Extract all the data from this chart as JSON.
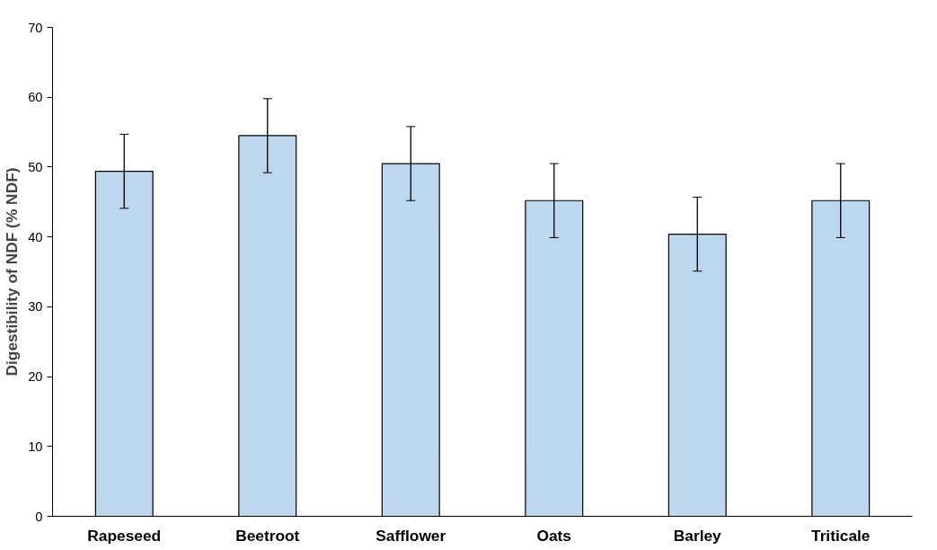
{
  "chart_data": {
    "type": "bar",
    "ylabel": "Digestibility of NDF (% NDF)",
    "categories": [
      "Rapeseed",
      "Beetroot",
      "Safflower",
      "Oats",
      "Barley",
      "Triticale"
    ],
    "values": [
      49.4,
      54.5,
      50.5,
      45.2,
      40.4,
      45.2
    ],
    "errors": [
      5.3,
      5.3,
      5.3,
      5.3,
      5.3,
      5.3
    ],
    "color": "#bdd7ee",
    "ylim": [
      0,
      70
    ],
    "yticks": [
      0,
      10,
      20,
      30,
      40,
      50,
      60,
      70
    ],
    "grid": false
  }
}
